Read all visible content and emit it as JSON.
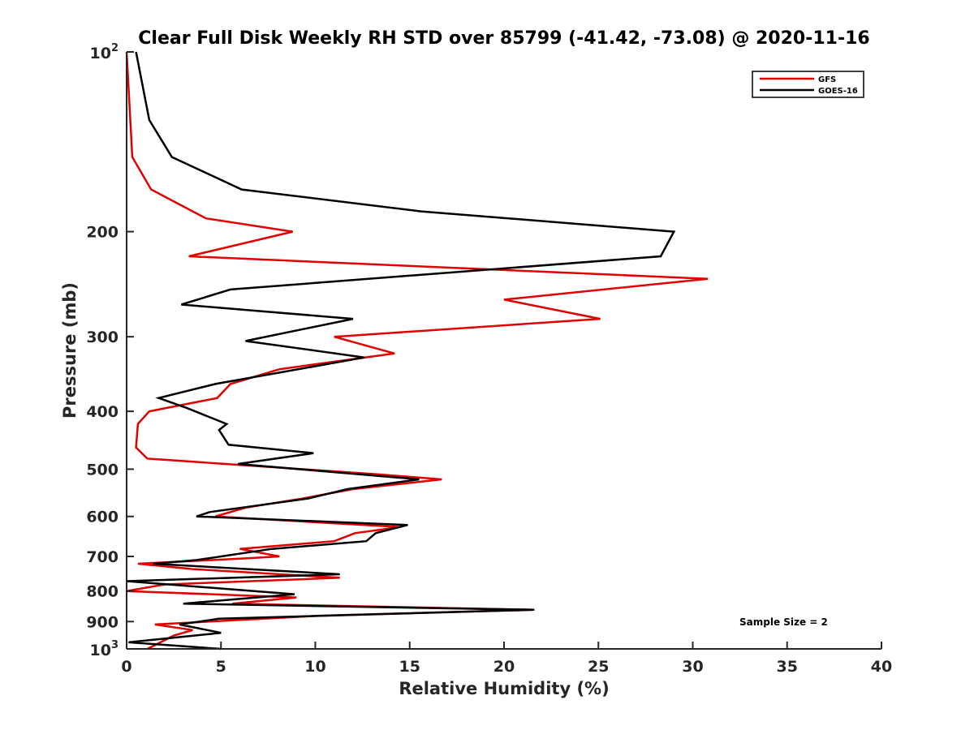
{
  "chart_data": {
    "type": "line",
    "title": "Clear Full Disk Weekly RH STD over 85799 (-41.42, -73.08) @ 2020-11-16",
    "xlabel": "Relative Humidity (%)",
    "ylabel": "Pressure (mb)",
    "xlim": [
      0,
      40
    ],
    "ylim": [
      100,
      1000
    ],
    "y_scale": "log",
    "y_reversed": true,
    "x_ticks": [
      "0",
      "5",
      "10",
      "15",
      "20",
      "25",
      "30",
      "35",
      "40"
    ],
    "y_ticks": [
      {
        "value": 100,
        "base": "10",
        "exp": "2"
      },
      {
        "value": 200,
        "label": "200"
      },
      {
        "value": 300,
        "label": "300"
      },
      {
        "value": 400,
        "label": "400"
      },
      {
        "value": 500,
        "label": "500"
      },
      {
        "value": 600,
        "label": "600"
      },
      {
        "value": 700,
        "label": "700"
      },
      {
        "value": 800,
        "label": "800"
      },
      {
        "value": 900,
        "label": "900"
      },
      {
        "value": 1000,
        "base": "10",
        "exp": "3"
      }
    ],
    "grid": false,
    "legend_position": "top-right",
    "annotation": "Sample Size = 2",
    "series": [
      {
        "name": "GFS",
        "color": "#e00000",
        "points": [
          [
            0.0,
            100
          ],
          [
            0.3,
            150
          ],
          [
            1.3,
            170
          ],
          [
            4.2,
            190
          ],
          [
            8.8,
            200
          ],
          [
            3.3,
            220
          ],
          [
            30.8,
            240
          ],
          [
            20.0,
            260
          ],
          [
            25.1,
            280
          ],
          [
            11.0,
            300
          ],
          [
            14.2,
            320
          ],
          [
            8.1,
            340
          ],
          [
            5.5,
            360
          ],
          [
            4.8,
            380
          ],
          [
            1.2,
            400
          ],
          [
            0.6,
            420
          ],
          [
            0.5,
            460
          ],
          [
            1.1,
            480
          ],
          [
            13.3,
            510
          ],
          [
            16.7,
            520
          ],
          [
            12.0,
            540
          ],
          [
            9.3,
            560
          ],
          [
            6.3,
            580
          ],
          [
            4.7,
            600
          ],
          [
            14.5,
            625
          ],
          [
            12.1,
            640
          ],
          [
            11.0,
            660
          ],
          [
            6.0,
            680
          ],
          [
            8.1,
            700
          ],
          [
            6.4,
            705
          ],
          [
            0.6,
            720
          ],
          [
            3.5,
            735
          ],
          [
            11.3,
            760
          ],
          [
            2.0,
            780
          ],
          [
            0.0,
            800
          ],
          [
            9.0,
            820
          ],
          [
            5.6,
            840
          ],
          [
            21.6,
            860
          ],
          [
            10.2,
            880
          ],
          [
            1.5,
            910
          ],
          [
            3.5,
            930
          ],
          [
            2.5,
            950
          ],
          [
            1.1,
            1000
          ]
        ]
      },
      {
        "name": "GOES-16",
        "color": "#000000",
        "points": [
          [
            0.5,
            100
          ],
          [
            1.2,
            130
          ],
          [
            2.4,
            150
          ],
          [
            6.1,
            170
          ],
          [
            15.6,
            185
          ],
          [
            29.0,
            200
          ],
          [
            28.3,
            220
          ],
          [
            5.5,
            250
          ],
          [
            2.9,
            265
          ],
          [
            12.0,
            280
          ],
          [
            6.3,
            305
          ],
          [
            12.6,
            325
          ],
          [
            4.7,
            360
          ],
          [
            1.7,
            380
          ],
          [
            3.2,
            395
          ],
          [
            5.3,
            420
          ],
          [
            4.9,
            430
          ],
          [
            5.4,
            455
          ],
          [
            9.9,
            470
          ],
          [
            5.9,
            490
          ],
          [
            15.5,
            520
          ],
          [
            11.7,
            540
          ],
          [
            9.6,
            560
          ],
          [
            4.4,
            590
          ],
          [
            3.7,
            600
          ],
          [
            14.9,
            620
          ],
          [
            13.2,
            640
          ],
          [
            12.7,
            660
          ],
          [
            7.7,
            680
          ],
          [
            3.7,
            710
          ],
          [
            1.4,
            720
          ],
          [
            11.3,
            750
          ],
          [
            0.0,
            770
          ],
          [
            8.9,
            810
          ],
          [
            3.0,
            840
          ],
          [
            21.6,
            860
          ],
          [
            4.9,
            890
          ],
          [
            2.8,
            910
          ],
          [
            5.0,
            940
          ],
          [
            0.1,
            975
          ],
          [
            5.0,
            1000
          ]
        ]
      }
    ]
  }
}
